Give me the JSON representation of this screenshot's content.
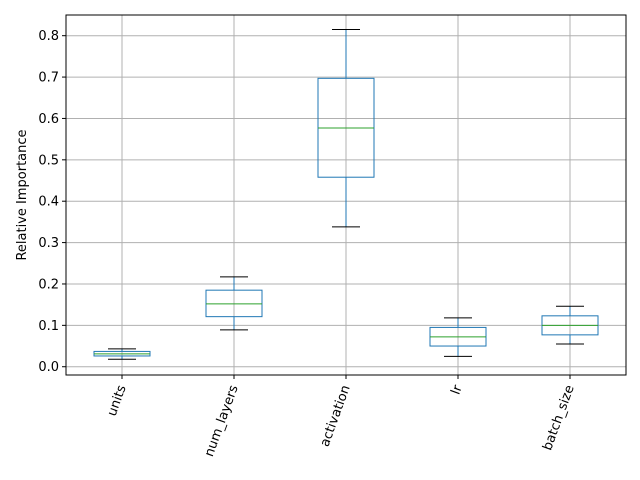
{
  "chart_data": {
    "type": "box",
    "title": "",
    "xlabel": "",
    "ylabel": "Relative Importance",
    "ylim": [
      -0.02,
      0.85
    ],
    "yticks": [
      0.0,
      0.1,
      0.2,
      0.3,
      0.4,
      0.5,
      0.6,
      0.7,
      0.8
    ],
    "ytick_labels": [
      "0.0",
      "0.1",
      "0.2",
      "0.3",
      "0.4",
      "0.5",
      "0.6",
      "0.7",
      "0.8"
    ],
    "grid": true,
    "categories": [
      "units",
      "num_layers",
      "activation",
      "lr",
      "batch_size"
    ],
    "boxes": [
      {
        "whisker_low": 0.018,
        "q1": 0.026,
        "median": 0.031,
        "q3": 0.037,
        "whisker_high": 0.043
      },
      {
        "whisker_low": 0.089,
        "q1": 0.121,
        "median": 0.152,
        "q3": 0.185,
        "whisker_high": 0.217
      },
      {
        "whisker_low": 0.338,
        "q1": 0.458,
        "median": 0.577,
        "q3": 0.697,
        "whisker_high": 0.815
      },
      {
        "whisker_low": 0.025,
        "q1": 0.05,
        "median": 0.072,
        "q3": 0.095,
        "whisker_high": 0.118
      },
      {
        "whisker_low": 0.055,
        "q1": 0.077,
        "median": 0.1,
        "q3": 0.123,
        "whisker_high": 0.146
      }
    ],
    "colors": {
      "box": "#1f77b4",
      "median": "#2ca02c",
      "whisker_cap": "#000000",
      "grid": "#b0b0b0"
    }
  }
}
